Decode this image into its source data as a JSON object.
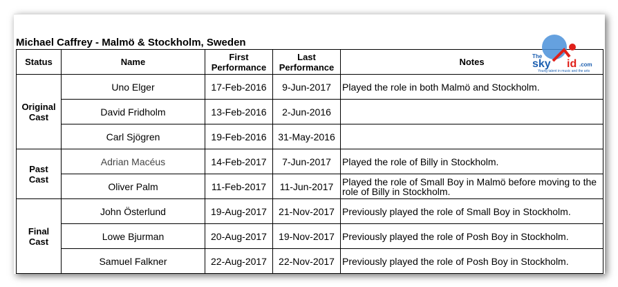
{
  "title": "Michael Caffrey - Malmö & Stockholm, Sweden",
  "headers": {
    "status": "Status",
    "name": "Name",
    "first_1": "First",
    "first_2": "Performance",
    "last_1": "Last",
    "last_2": "Performance",
    "notes": "Notes"
  },
  "logo": {
    "text_the": "The",
    "text_sky": "sky",
    "text_kid": "kid",
    "text_com": ".com",
    "tagline": "Young talent in music and the arts"
  },
  "groups": [
    {
      "status_1": "Original",
      "status_2": "Cast",
      "rows": [
        {
          "name": "Uno Elger",
          "first": "17-Feb-2016",
          "last": "9-Jun-2017",
          "notes": "Played the role in both Malmö and Stockholm."
        },
        {
          "name": "David Fridholm",
          "first": "13-Feb-2016",
          "last": "2-Jun-2016",
          "notes": ""
        },
        {
          "name": "Carl Sjögren",
          "first": "19-Feb-2016",
          "last": "31-May-2016",
          "notes": ""
        }
      ]
    },
    {
      "status_1": "Past",
      "status_2": "Cast",
      "rows": [
        {
          "name": "Adrian Macéus",
          "first": "14-Feb-2017",
          "last": "7-Jun-2017",
          "notes": "Played the role of Billy in Stockholm."
        },
        {
          "name": "Oliver Palm",
          "first": "11-Feb-2017",
          "last": "11-Jun-2017",
          "notes": "Played the role of Small Boy in Malmö before moving to the role of Billy in Stockholm."
        }
      ]
    },
    {
      "status_1": "Final",
      "status_2": "Cast",
      "rows": [
        {
          "name": "John Österlund",
          "first": "19-Aug-2017",
          "last": "21-Nov-2017",
          "notes": "Previously played the role of Small Boy in Stockholm."
        },
        {
          "name": "Lowe Bjurman",
          "first": "20-Aug-2017",
          "last": "19-Nov-2017",
          "notes": "Previously played the role of Posh Boy in Stockholm."
        },
        {
          "name": "Samuel Falkner",
          "first": "22-Aug-2017",
          "last": "22-Nov-2017",
          "notes": "Previously played the role of Posh Boy in Stockholm."
        }
      ]
    }
  ]
}
